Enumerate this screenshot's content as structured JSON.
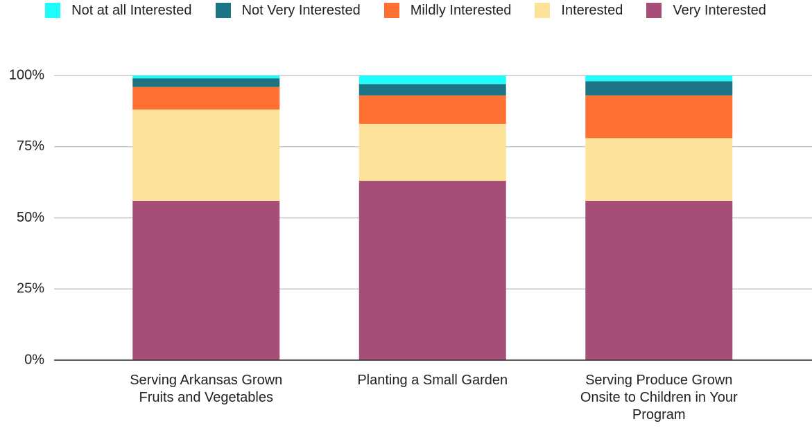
{
  "chart_data": {
    "type": "stacked_bar",
    "categories": [
      "Serving Arkansas Grown Fruits and Vegetables",
      "Planting a Small Garden",
      "Serving Produce Grown Onsite to Children in Your Program"
    ],
    "series": [
      {
        "name": "Not at all Interested",
        "color": "#1ffcfc",
        "values": [
          1,
          3,
          2
        ]
      },
      {
        "name": "Not Very Interested",
        "color": "#1d7484",
        "values": [
          3,
          4,
          5
        ]
      },
      {
        "name": "Mildly Interested",
        "color": "#ff7033",
        "values": [
          8,
          10,
          15
        ]
      },
      {
        "name": "Interested",
        "color": "#fde39a",
        "values": [
          32,
          20,
          22
        ]
      },
      {
        "name": "Very Interested",
        "color": "#a54e78",
        "values": [
          56,
          63,
          56
        ]
      }
    ],
    "ylim": [
      0,
      100
    ],
    "yticks": [
      {
        "value": 0,
        "label": "0%"
      },
      {
        "value": 25,
        "label": "25%"
      },
      {
        "value": 50,
        "label": "50%"
      },
      {
        "value": 75,
        "label": "75%"
      },
      {
        "value": 100,
        "label": "100%"
      }
    ],
    "grid": true,
    "legend": "top"
  }
}
